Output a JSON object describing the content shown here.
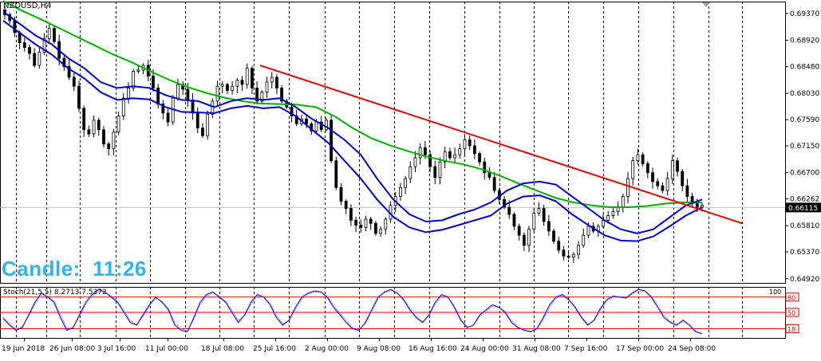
{
  "window": {
    "symbol_label": "NZDUSD,H4",
    "timer_label": "Candle:",
    "timer_value": "11:26",
    "stoch_label": "Stoch(21,5,5) 8.2713 7.5372"
  },
  "colors": {
    "background": "#ffffff",
    "candles": "#000000",
    "ma_fast": "#0000cd",
    "ma_slow": "#00b000",
    "trendline": "#e00000",
    "stoch_main": "#0000cd",
    "stoch_signal": "#8080ff",
    "stoch_levels": "#e00000",
    "timer_text": "#2fb4ee",
    "price_tag_bg": "#ffffff"
  },
  "chart_data": [
    {
      "type": "candlestick",
      "title": "",
      "series_name": "NZDUSD,H4",
      "y_ticks": [
        "0.69370",
        "0.68920",
        "0.68480",
        "0.68030",
        "0.67590",
        "0.67150",
        "0.66700",
        "0.66262",
        "0.65810",
        "0.65370",
        "0.64920"
      ],
      "ylim": [
        0.6485,
        0.6957
      ],
      "current_price": "0.66115",
      "x_ticks": [
        "19 Jun 2018",
        "26 Jun 08:00",
        "3 Jul 16:00",
        "11 Jul 00:00",
        "18 Jul 08:00",
        "25 Jul 16:00",
        "2 Aug 00:00",
        "9 Aug 08:00",
        "16 Aug 16:00",
        "24 Aug 00:00",
        "31 Aug 08:00",
        "7 Sep 16:00",
        "17 Sep 00:00",
        "24 Sep 08:00"
      ],
      "close_path": [
        0.6935,
        0.6925,
        0.6905,
        0.6888,
        0.688,
        0.687,
        0.685,
        0.6872,
        0.6895,
        0.6912,
        0.689,
        0.6862,
        0.6848,
        0.683,
        0.6815,
        0.6778,
        0.6742,
        0.6735,
        0.6758,
        0.6742,
        0.6718,
        0.671,
        0.6738,
        0.6765,
        0.6795,
        0.6812,
        0.684,
        0.6842,
        0.685,
        0.6832,
        0.6812,
        0.6785,
        0.677,
        0.6755,
        0.6795,
        0.6818,
        0.681,
        0.6792,
        0.677,
        0.6745,
        0.6732,
        0.6768,
        0.679,
        0.6815,
        0.6818,
        0.6808,
        0.6815,
        0.6825,
        0.6818,
        0.6845,
        0.6812,
        0.679,
        0.6805,
        0.6822,
        0.683,
        0.6812,
        0.679,
        0.678,
        0.6765,
        0.6752,
        0.676,
        0.6752,
        0.674,
        0.6755,
        0.6742,
        0.6758,
        0.669,
        0.6645,
        0.6622,
        0.661,
        0.659,
        0.6582,
        0.6578,
        0.6592,
        0.6585,
        0.6568,
        0.6575,
        0.6592,
        0.6615,
        0.663,
        0.6645,
        0.666,
        0.668,
        0.6695,
        0.6712,
        0.67,
        0.668,
        0.6662,
        0.6688,
        0.6705,
        0.6695,
        0.67,
        0.671,
        0.6725,
        0.6715,
        0.6702,
        0.6688,
        0.667,
        0.6662,
        0.664,
        0.6625,
        0.6612,
        0.66,
        0.658,
        0.6565,
        0.6548,
        0.6575,
        0.6602,
        0.661,
        0.6588,
        0.6572,
        0.6555,
        0.654,
        0.653,
        0.6528,
        0.6533,
        0.6548,
        0.6565,
        0.658,
        0.6572,
        0.658,
        0.659,
        0.6598,
        0.6605,
        0.6612,
        0.663,
        0.666,
        0.669,
        0.67,
        0.6685,
        0.667,
        0.6655,
        0.6648,
        0.664,
        0.666,
        0.669,
        0.6672,
        0.6648,
        0.663,
        0.6618,
        0.6612,
        0.6615
      ],
      "ma_fast_1": [
        0.694,
        0.692,
        0.69,
        0.6885,
        0.6862,
        0.6845,
        0.6822,
        0.6812,
        0.6815,
        0.6812,
        0.68,
        0.6792,
        0.679,
        0.678,
        0.679,
        0.6795,
        0.6792,
        0.6795,
        0.678,
        0.676,
        0.6745,
        0.6725,
        0.67,
        0.666,
        0.6625,
        0.66,
        0.6588,
        0.659,
        0.66,
        0.6608,
        0.662,
        0.664,
        0.6652,
        0.6655,
        0.665,
        0.663,
        0.661,
        0.659,
        0.6575,
        0.6568,
        0.6575,
        0.6595,
        0.6615,
        0.6625
      ],
      "ma_fast_2": [
        0.6925,
        0.6905,
        0.6885,
        0.6868,
        0.6845,
        0.6828,
        0.6805,
        0.6792,
        0.6795,
        0.6793,
        0.678,
        0.6772,
        0.6771,
        0.677,
        0.6778,
        0.6782,
        0.6778,
        0.678,
        0.6765,
        0.6742,
        0.672,
        0.669,
        0.666,
        0.6625,
        0.6596,
        0.6578,
        0.657,
        0.6574,
        0.6582,
        0.659,
        0.6598,
        0.6618,
        0.663,
        0.6632,
        0.6622,
        0.66,
        0.6582,
        0.6565,
        0.6556,
        0.6555,
        0.6563,
        0.658,
        0.6598,
        0.6612
      ],
      "ma_slow": [
        0.6958,
        0.6942,
        0.6928,
        0.6913,
        0.6898,
        0.6883,
        0.6868,
        0.6855,
        0.684,
        0.6826,
        0.6814,
        0.6804,
        0.6796,
        0.679,
        0.6786,
        0.6785,
        0.6784,
        0.678,
        0.6765,
        0.6745,
        0.6728,
        0.6716,
        0.6706,
        0.6697,
        0.669,
        0.6684,
        0.6676,
        0.6665,
        0.6652,
        0.664,
        0.6628,
        0.662,
        0.6615,
        0.6612,
        0.6612,
        0.6614,
        0.6618,
        0.662,
        0.662
      ],
      "trendline": [
        [
          0.685,
          0.6585
        ]
      ]
    },
    {
      "type": "line",
      "title": "",
      "series_name": "Stoch(21,5,5)",
      "y_ticks": [
        "80",
        "50",
        "18"
      ],
      "levels": [
        80,
        50,
        18
      ],
      "ylim": [
        0,
        100
      ],
      "current_main": "8.2713",
      "current_signal": "7.5372",
      "main": [
        38,
        25,
        15,
        20,
        45,
        70,
        88,
        80,
        70,
        40,
        15,
        20,
        45,
        70,
        85,
        95,
        90,
        80,
        70,
        50,
        30,
        25,
        45,
        65,
        80,
        70,
        55,
        25,
        15,
        12,
        40,
        70,
        85,
        90,
        80,
        70,
        50,
        30,
        45,
        70,
        85,
        80,
        65,
        40,
        25,
        35,
        60,
        80,
        88,
        92,
        90,
        80,
        60,
        45,
        30,
        18,
        15,
        30,
        55,
        80,
        90,
        95,
        88,
        75,
        55,
        40,
        30,
        45,
        70,
        85,
        80,
        60,
        35,
        20,
        25,
        45,
        55,
        65,
        60,
        50,
        30,
        20,
        15,
        12,
        18,
        40,
        65,
        80,
        85,
        75,
        60,
        40,
        25,
        35,
        58,
        75,
        82,
        80,
        78,
        88,
        95,
        92,
        80,
        60,
        40,
        30,
        25,
        35,
        25,
        12,
        8
      ],
      "signal": [
        40,
        28,
        18,
        22,
        42,
        66,
        84,
        82,
        72,
        46,
        20,
        20,
        42,
        66,
        82,
        92,
        90,
        82,
        72,
        54,
        34,
        26,
        42,
        62,
        78,
        72,
        58,
        30,
        18,
        14,
        36,
        66,
        82,
        88,
        82,
        72,
        54,
        34,
        44,
        66,
        82,
        80,
        68,
        44,
        28,
        34,
        56,
        76,
        86,
        90,
        90,
        82,
        64,
        48,
        34,
        20,
        16,
        28,
        52,
        76,
        88,
        93,
        88,
        77,
        58,
        42,
        32,
        42,
        66,
        82,
        80,
        62,
        38,
        22,
        24,
        42,
        52,
        62,
        60,
        52,
        34,
        22,
        16,
        13,
        17,
        36,
        60,
        77,
        83,
        76,
        62,
        43,
        27,
        33,
        54,
        72,
        80,
        80,
        78,
        86,
        92,
        92,
        82,
        64,
        44,
        32,
        26,
        32,
        26,
        14,
        8
      ]
    }
  ]
}
